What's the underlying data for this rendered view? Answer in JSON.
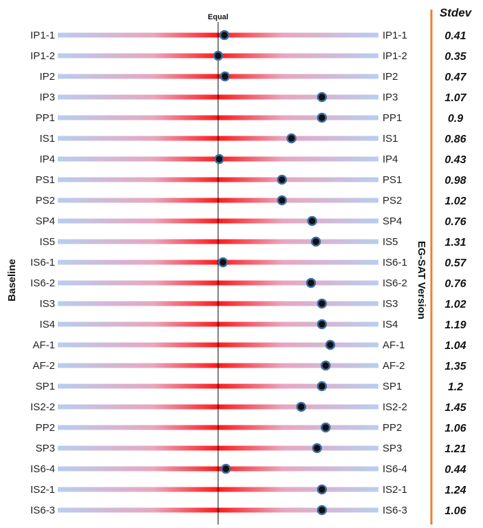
{
  "chart_data": {
    "type": "scatter",
    "title": "",
    "center_label": "Equal",
    "xlabel_left": "Baseline",
    "xlabel_right": "EG-SAT Version",
    "stdev_header": "Stdev",
    "xlim": [
      0,
      1
    ],
    "equal_value": 0.5,
    "rows": [
      {
        "label": "IP1-1",
        "value": 0.522,
        "stdev": "0.41"
      },
      {
        "label": "IP1-2",
        "value": 0.5,
        "stdev": "0.35"
      },
      {
        "label": "IP2",
        "value": 0.524,
        "stdev": "0.47"
      },
      {
        "label": "IP3",
        "value": 0.861,
        "stdev": "1.07"
      },
      {
        "label": "PP1",
        "value": 0.861,
        "stdev": "0.9"
      },
      {
        "label": "IS1",
        "value": 0.755,
        "stdev": "0.86"
      },
      {
        "label": "IP4",
        "value": 0.504,
        "stdev": "0.43"
      },
      {
        "label": "PS1",
        "value": 0.722,
        "stdev": "0.98"
      },
      {
        "label": "PS2",
        "value": 0.722,
        "stdev": "1.02"
      },
      {
        "label": "SP4",
        "value": 0.827,
        "stdev": "0.76"
      },
      {
        "label": "IS5",
        "value": 0.84,
        "stdev": "1.31"
      },
      {
        "label": "IS6-1",
        "value": 0.517,
        "stdev": "0.57"
      },
      {
        "label": "IS6-2",
        "value": 0.823,
        "stdev": "0.76"
      },
      {
        "label": "IS3",
        "value": 0.861,
        "stdev": "1.02"
      },
      {
        "label": "IS4",
        "value": 0.861,
        "stdev": "1.19"
      },
      {
        "label": "AF-1",
        "value": 0.89,
        "stdev": "1.04"
      },
      {
        "label": "AF-2",
        "value": 0.874,
        "stdev": "1.35"
      },
      {
        "label": "SP1",
        "value": 0.861,
        "stdev": "1.2"
      },
      {
        "label": "IS2-2",
        "value": 0.789,
        "stdev": "1.45"
      },
      {
        "label": "PP2",
        "value": 0.874,
        "stdev": "1.06"
      },
      {
        "label": "SP3",
        "value": 0.844,
        "stdev": "1.21"
      },
      {
        "label": "IS6-4",
        "value": 0.527,
        "stdev": "0.44"
      },
      {
        "label": "IS2-1",
        "value": 0.861,
        "stdev": "1.24"
      },
      {
        "label": "IS6-3",
        "value": 0.861,
        "stdev": "1.06"
      }
    ]
  },
  "colors": {
    "bar_end": "#b9cdf0",
    "bar_center": "#ff1a1a",
    "dot_fill": "#111111",
    "dot_stroke": "#3d6ea8",
    "accent_line": "#ed7d31",
    "center_line": "#000000"
  }
}
